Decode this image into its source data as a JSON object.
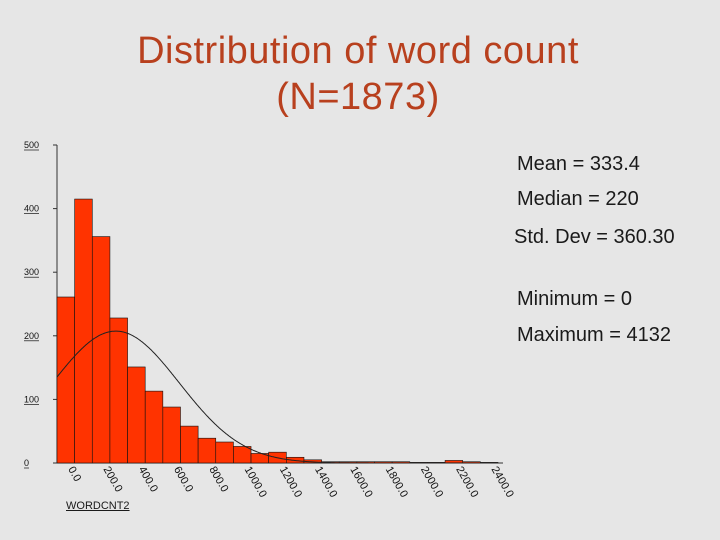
{
  "chart_data": {
    "type": "bar",
    "title": "Distribution of word count",
    "subtitle": "(N=1873)",
    "xlabel": "WORDCNT2",
    "ylabel": "",
    "ylim": [
      0,
      500
    ],
    "yticks": [
      0,
      100,
      200,
      300,
      400,
      500
    ],
    "bin_width": 100,
    "bins": [
      0,
      100,
      200,
      300,
      400,
      500,
      600,
      700,
      800,
      900,
      1000,
      1100,
      1200,
      1300,
      1400,
      1500,
      1600,
      1700,
      1800,
      1900,
      2000,
      2100,
      2200,
      2300,
      2400
    ],
    "x_tick_labels": [
      "0.0",
      "200.0",
      "400.0",
      "600.0",
      "800.0",
      "1000.0",
      "1200.0",
      "1400.0",
      "1600.0",
      "1800.0",
      "2000.0",
      "2200.0",
      "2400.0"
    ],
    "values": [
      261,
      415,
      356,
      228,
      151,
      113,
      88,
      58,
      39,
      33,
      26,
      15,
      17,
      9,
      5,
      2,
      2,
      2,
      2,
      2,
      1,
      1,
      4,
      2,
      1
    ],
    "normal_curve": {
      "mean": 333.4,
      "std": 360.3,
      "n": 1873
    },
    "bar_color": "#ff3300",
    "grid": false
  },
  "stats": {
    "mean": "Mean = 333.4",
    "median": "Median = 220",
    "std": "Std. Dev = 360.30",
    "min": "Minimum = 0",
    "max": "Maximum = 4132"
  }
}
